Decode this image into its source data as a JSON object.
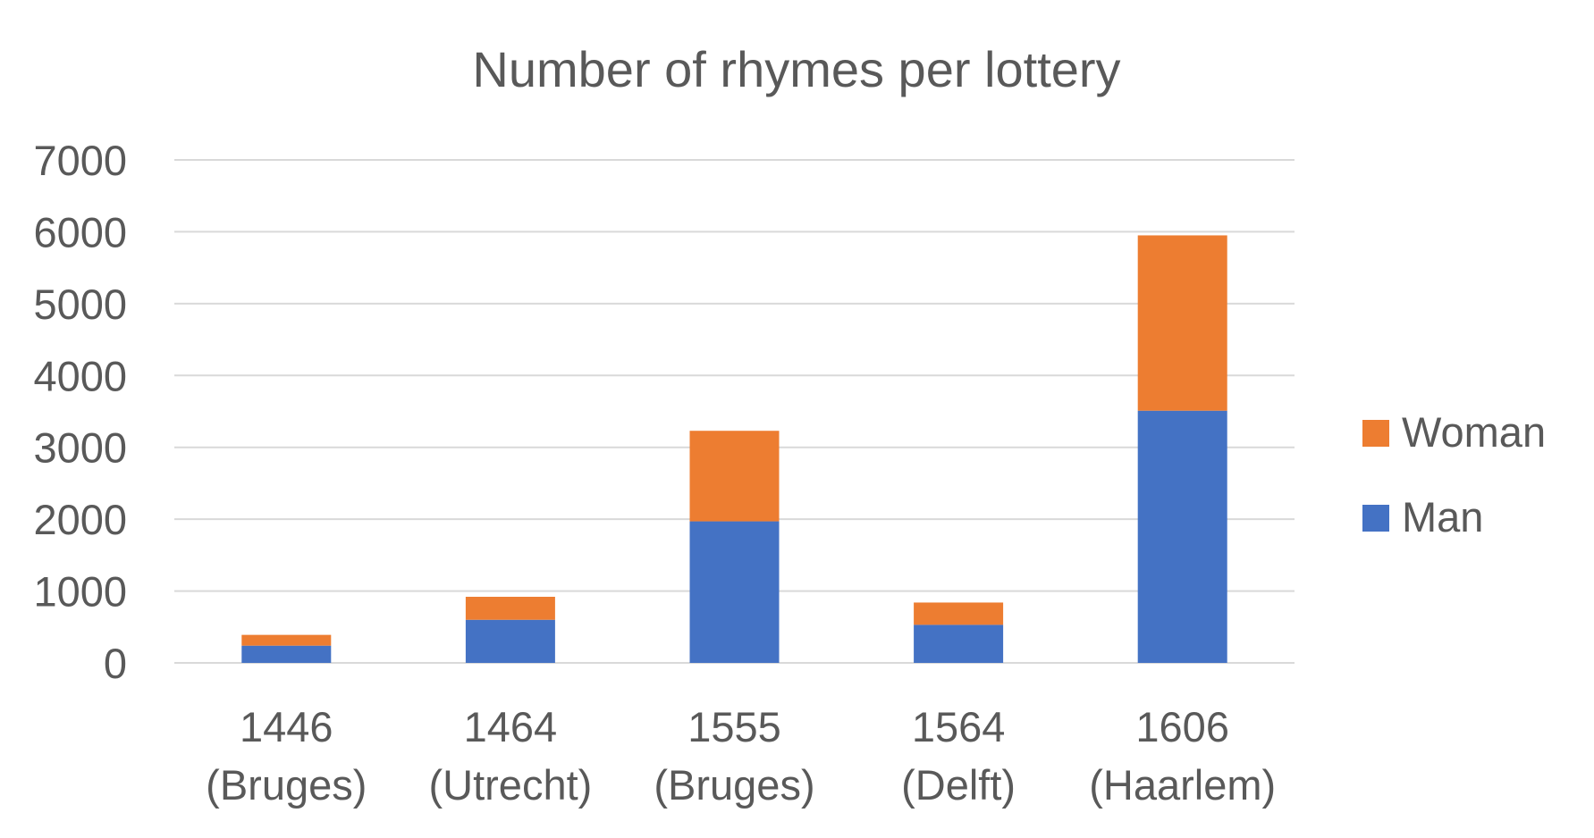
{
  "chart_data": {
    "type": "bar",
    "stacked": true,
    "title": "Number of rhymes per lottery",
    "xlabel": "",
    "ylabel": "",
    "categories": [
      [
        "1446",
        "(Bruges)"
      ],
      [
        "1464",
        "(Utrecht)"
      ],
      [
        "1555",
        "(Bruges)"
      ],
      [
        "1564",
        "(Delft)"
      ],
      [
        "1606",
        "(Haarlem)"
      ]
    ],
    "series": [
      {
        "name": "Man",
        "color": "#4472C4",
        "values": [
          240,
          600,
          1970,
          530,
          3510
        ]
      },
      {
        "name": "Woman",
        "color": "#ED7D31",
        "values": [
          150,
          320,
          1260,
          310,
          2440
        ]
      }
    ],
    "ylim": [
      0,
      7000
    ],
    "yticks": [
      0,
      1000,
      2000,
      3000,
      4000,
      5000,
      6000,
      7000
    ],
    "grid": true,
    "legend_position": "right"
  }
}
